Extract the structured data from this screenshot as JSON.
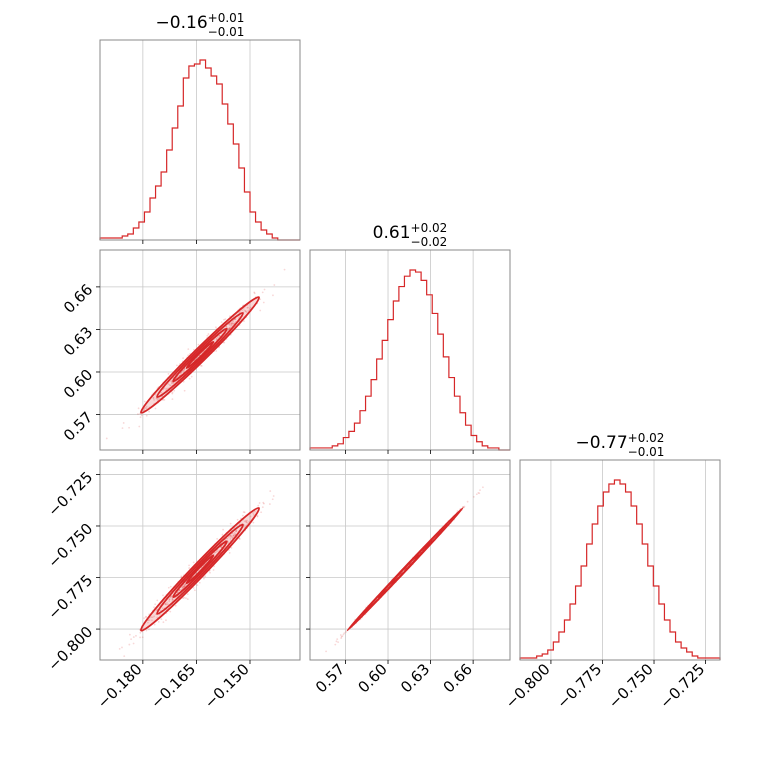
{
  "chart_data": {
    "type": "corner",
    "parameters": [
      {
        "title_main": "−0.16",
        "title_plus": "+0.01",
        "title_minus": "−0.01",
        "range": [
          -0.192,
          -0.136
        ],
        "ticks": [
          -0.18,
          -0.165,
          -0.15
        ],
        "tick_labels": [
          "−0.180",
          "−0.165",
          "−0.150"
        ]
      },
      {
        "title_main": "0.61",
        "title_plus": "+0.02",
        "title_minus": "−0.02",
        "range": [
          0.545,
          0.686
        ],
        "ticks": [
          0.57,
          0.6,
          0.63,
          0.66
        ],
        "tick_labels": [
          "0.57",
          "0.60",
          "0.63",
          "0.66"
        ]
      },
      {
        "title_main": "−0.77",
        "title_plus": "+0.02",
        "title_minus": "−0.01",
        "range": [
          -0.815,
          -0.718
        ],
        "ticks": [
          -0.8,
          -0.775,
          -0.75,
          -0.725
        ],
        "tick_labels": [
          "−0.800",
          "−0.775",
          "−0.750",
          "−0.725"
        ]
      }
    ],
    "histograms": [
      {
        "parameter": 0,
        "bin_start": -0.192,
        "bin_end": -0.136,
        "counts": [
          1,
          1,
          1,
          1,
          2,
          3,
          6,
          9,
          14,
          21,
          27,
          34,
          45,
          56,
          67,
          81,
          87,
          88,
          90,
          86,
          82,
          78,
          68,
          58,
          48,
          36,
          24,
          14,
          9,
          5,
          3,
          1,
          0,
          0,
          0,
          0
        ]
      },
      {
        "parameter": 1,
        "bin_start": 0.545,
        "bin_end": 0.686,
        "counts": [
          1,
          1,
          1,
          1,
          2,
          3,
          6,
          9,
          13,
          19,
          26,
          34,
          44,
          53,
          63,
          72,
          79,
          84,
          87,
          86,
          82,
          75,
          66,
          56,
          45,
          35,
          26,
          18,
          12,
          7,
          4,
          2,
          1,
          1,
          0,
          0
        ]
      },
      {
        "parameter": 2,
        "bin_start": -0.815,
        "bin_end": -0.718,
        "counts": [
          1,
          1,
          1,
          2,
          3,
          5,
          9,
          14,
          20,
          28,
          37,
          47,
          58,
          68,
          77,
          84,
          88,
          90,
          88,
          84,
          77,
          68,
          58,
          47,
          37,
          28,
          20,
          14,
          9,
          6,
          4,
          2,
          1,
          1,
          1,
          1
        ]
      }
    ],
    "pair_panels": [
      {
        "x_param": 0,
        "y_param": 1,
        "correlation": 0.98,
        "contours": "filled"
      },
      {
        "x_param": 0,
        "y_param": 2,
        "correlation": 0.98,
        "contours": "filled"
      },
      {
        "x_param": 1,
        "y_param": 2,
        "correlation": 0.999,
        "contours": "filled"
      }
    ],
    "grid": true,
    "colors": {
      "series": "#d62728",
      "frame": "#888888",
      "grid": "#c8c8c8"
    }
  }
}
